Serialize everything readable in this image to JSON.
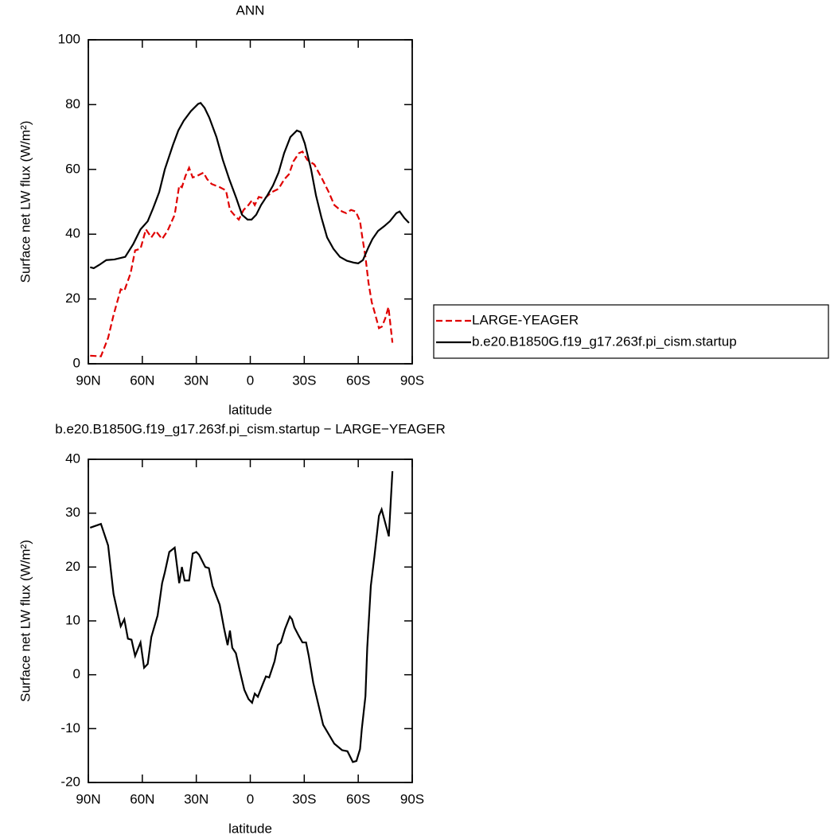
{
  "chart_data": [
    {
      "type": "line",
      "title": "ANN",
      "xlabel": "latitude",
      "ylabel": "Surface net LW flux (W/m²)",
      "xlim": [
        90,
        -90
      ],
      "xticks": [
        {
          "value": 90,
          "label": "90N"
        },
        {
          "value": 60,
          "label": "60N"
        },
        {
          "value": 30,
          "label": "30N"
        },
        0,
        {
          "value": -30,
          "label": "30S"
        },
        {
          "value": -60,
          "label": "60S"
        },
        {
          "value": -90,
          "label": "90S"
        }
      ],
      "ylim": [
        0,
        100
      ],
      "yticks": [
        0,
        20,
        40,
        60,
        80,
        100
      ],
      "legend": "right",
      "series": [
        {
          "name": "LARGE-YEAGER",
          "color": "#e00000",
          "line_style": "dashed",
          "x": [
            89,
            83,
            79,
            76,
            72,
            70,
            66.5,
            64,
            61,
            58,
            55,
            52.5,
            49,
            46,
            42,
            39.5,
            38,
            36,
            34,
            32,
            29.5,
            26,
            24,
            21.5,
            17,
            13.5,
            11.3,
            9,
            6.4,
            3.7,
            1,
            -1,
            -2.5,
            -4.7,
            -8,
            -12,
            -15.7,
            -19,
            -21.5,
            -24,
            -27,
            -29,
            -31.6,
            -35.6,
            -40,
            -43.6,
            -46.7,
            -51,
            -53.3,
            -56,
            -58.6,
            -61,
            -62,
            -64,
            -65.7,
            -67.5,
            -68.8,
            -71.5,
            -73.2,
            -75,
            -76.8,
            -79
          ],
          "values": [
            2.5,
            2.3,
            8,
            15,
            23,
            22.5,
            28,
            35,
            35.5,
            41.5,
            39,
            41,
            38.5,
            41,
            46,
            55,
            54.5,
            58,
            60.5,
            57.5,
            58,
            59,
            57,
            55.5,
            54.5,
            53.5,
            47.5,
            46,
            44.5,
            47.5,
            49,
            50.5,
            49,
            51.5,
            51,
            53,
            54,
            57,
            58.5,
            62.5,
            65,
            65.5,
            63,
            61.5,
            57,
            53,
            49,
            47,
            46.5,
            47.5,
            47,
            44,
            40,
            33,
            25,
            19,
            16.5,
            11,
            11.5,
            14,
            17.5,
            6.5
          ]
        },
        {
          "name": "b.e20.B1850G.f19_g17.263f.pi_cism.startup",
          "color": "#000000",
          "line_style": "solid",
          "x": [
            89,
            87,
            84,
            80,
            75.5,
            69.5,
            65,
            61,
            57,
            54,
            50.6,
            47.5,
            43,
            40,
            37,
            33,
            29,
            27.6,
            25.4,
            22.8,
            18.8,
            15.3,
            11.7,
            7.7,
            4.6,
            1.5,
            -0.7,
            -3.3,
            -6,
            -9.5,
            -12.6,
            -15.7,
            -18.8,
            -22.3,
            -25.9,
            -28,
            -30.3,
            -33.8,
            -36.5,
            -39.6,
            -42.7,
            -46.2,
            -49.8,
            -53.7,
            -57.7,
            -60,
            -62.6,
            -65.7,
            -67.9,
            -71,
            -74.5,
            -77.6,
            -81.2,
            -83,
            -85.6,
            -88.2
          ],
          "values": [
            29.8,
            29.5,
            30.5,
            32,
            32.2,
            33,
            37,
            41.5,
            44,
            48,
            53,
            60,
            67.5,
            72,
            75,
            78,
            80.2,
            80.5,
            79,
            76,
            70,
            63,
            57,
            51,
            46,
            44.5,
            44.5,
            46,
            49,
            52,
            55,
            59,
            65,
            70,
            72,
            71.5,
            68,
            60,
            52,
            45,
            39,
            35.5,
            33,
            31.8,
            31.2,
            31,
            32,
            36,
            38.5,
            41,
            42.5,
            44,
            46.5,
            47,
            45,
            43.5
          ]
        }
      ]
    },
    {
      "type": "line",
      "title": "b.e20.B1850G.f19_g17.263f.pi_cism.startup − LARGE−YEAGER",
      "xlabel": "latitude",
      "ylabel": "Surface net LW flux (W/m²)",
      "xlim": [
        90,
        -90
      ],
      "xticks": [
        {
          "value": 90,
          "label": "90N"
        },
        {
          "value": 60,
          "label": "60N"
        },
        {
          "value": 30,
          "label": "30N"
        },
        0,
        {
          "value": -30,
          "label": "30S"
        },
        {
          "value": -60,
          "label": "60S"
        },
        {
          "value": -90,
          "label": "90S"
        }
      ],
      "ylim": [
        -20,
        40
      ],
      "yticks": [
        -20,
        -10,
        0,
        10,
        20,
        30,
        40
      ],
      "color": "#000000",
      "x": [
        89,
        83,
        79,
        76,
        72,
        70,
        68,
        66,
        64,
        61,
        59,
        57,
        55,
        51.5,
        49,
        47.5,
        45,
        42,
        39.5,
        38,
        36.5,
        34,
        32,
        30,
        28.5,
        25,
        23,
        21,
        17,
        14.5,
        12.6,
        11.3,
        10,
        8,
        6,
        3.3,
        1,
        -1,
        -2.5,
        -4.2,
        -7,
        -8.7,
        -10.5,
        -13.5,
        -15.3,
        -17,
        -19.3,
        -22,
        -23.2,
        -24.5,
        -27,
        -29,
        -31,
        -32.5,
        -35,
        -40.5,
        -46.7,
        -51,
        -54,
        -57,
        -59,
        -61,
        -62,
        -64,
        -65,
        -67,
        -69,
        -71.5,
        -73,
        -77,
        -79
      ],
      "values": [
        27.3,
        28,
        24,
        15,
        9,
        10.3,
        6.7,
        6.5,
        3.5,
        6,
        1.3,
        2,
        7,
        11,
        17,
        19,
        22.8,
        23.6,
        17,
        20,
        17.5,
        17.5,
        22.5,
        22.8,
        22.3,
        20,
        19.8,
        16.5,
        13,
        8.5,
        5.5,
        8.2,
        5,
        4,
        1,
        -2.8,
        -4.5,
        -5.2,
        -3.5,
        -4.1,
        -1.7,
        -0.3,
        -0.5,
        2.5,
        5.5,
        6,
        8.5,
        10.8,
        10.3,
        8.8,
        7.2,
        6,
        6,
        3.5,
        -1.5,
        -9.3,
        -12.8,
        -14,
        -14.2,
        -16.2,
        -16,
        -13.8,
        -10,
        -4,
        5,
        16.5,
        22,
        29.5,
        30.7,
        25.7,
        37.8
      ]
    }
  ]
}
